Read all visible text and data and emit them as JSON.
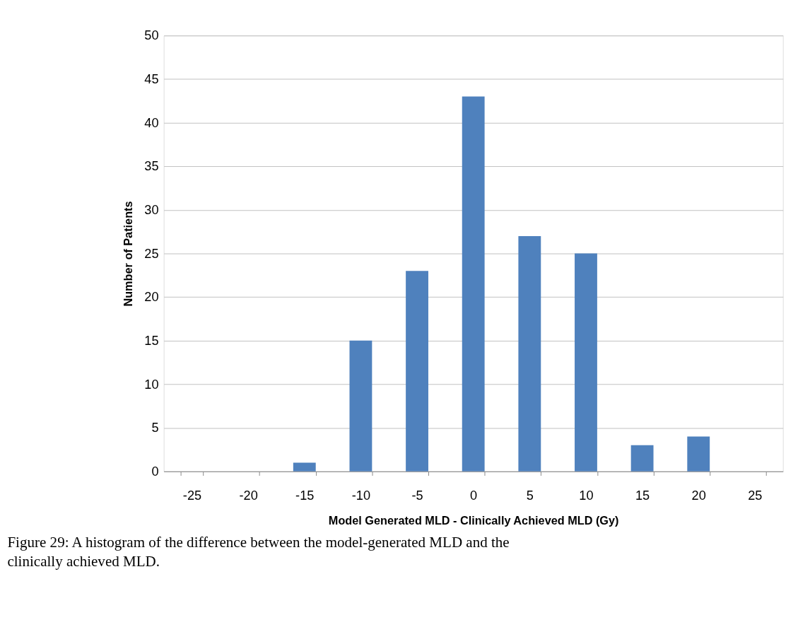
{
  "chart_data": {
    "type": "bar",
    "categories": [
      "-25",
      "-20",
      "-15",
      "-10",
      "-5",
      "0",
      "5",
      "10",
      "15",
      "20",
      "25"
    ],
    "values": [
      0,
      0,
      1,
      15,
      23,
      43,
      27,
      25,
      3,
      4,
      0
    ],
    "color": "#4f81bd",
    "xlabel": "Model Generated MLD - Clinically Achieved MLD (Gy)",
    "ylabel": "Number of Patients",
    "ylim": [
      0,
      50
    ],
    "yticks": [
      0,
      5,
      10,
      15,
      20,
      25,
      30,
      35,
      40,
      45,
      50
    ],
    "grid": "y",
    "annotations": [
      "Figure 29: A histogram of the difference between the model-generated MLD and the clinically achieved MLD."
    ]
  }
}
